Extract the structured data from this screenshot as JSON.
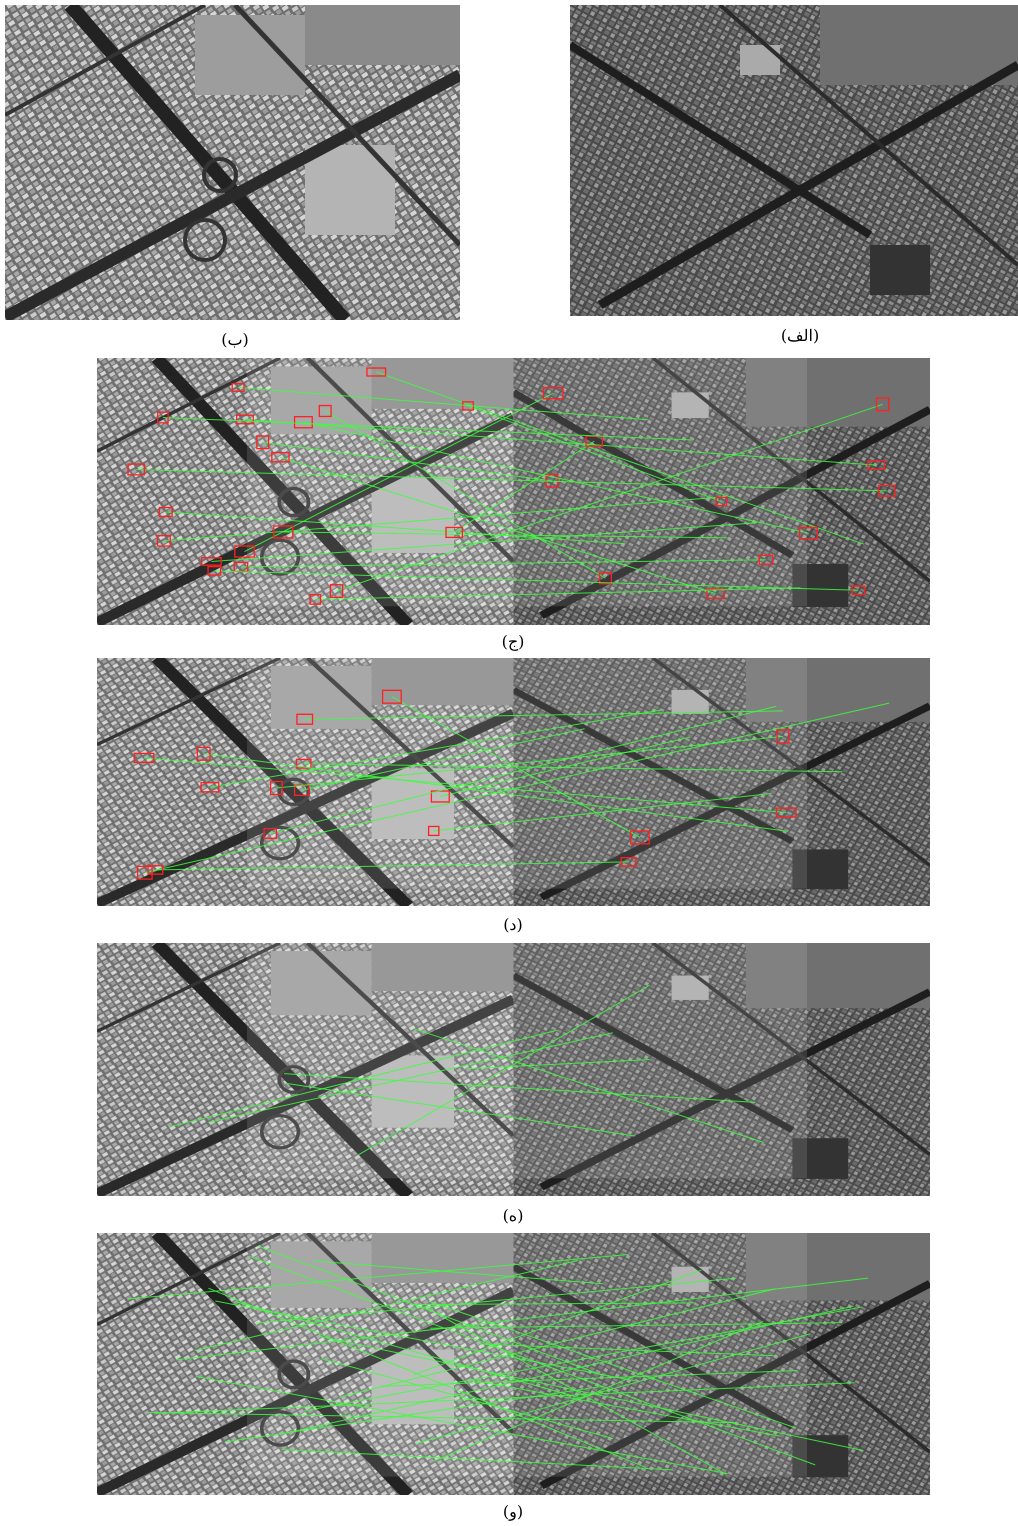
{
  "figure": {
    "panels": [
      {
        "caption": "(ب)"
      },
      {
        "caption": "(الف)"
      },
      {
        "caption": "(ج)"
      },
      {
        "caption": "(د)"
      },
      {
        "caption": "(ه)"
      },
      {
        "caption": "(و)"
      }
    ]
  }
}
